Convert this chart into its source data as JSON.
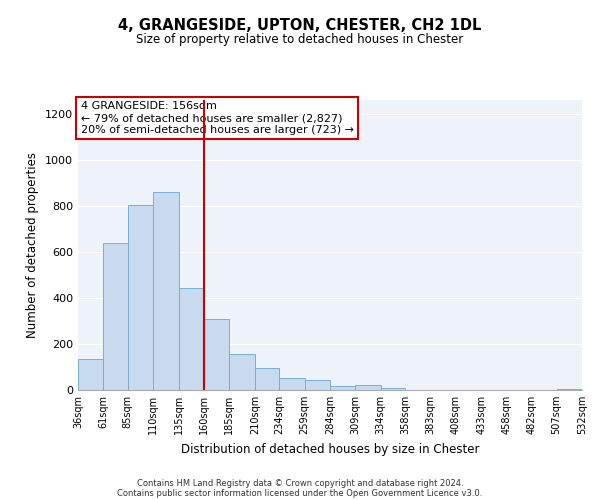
{
  "title": "4, GRANGESIDE, UPTON, CHESTER, CH2 1DL",
  "subtitle": "Size of property relative to detached houses in Chester",
  "xlabel": "Distribution of detached houses by size in Chester",
  "ylabel": "Number of detached properties",
  "bar_color": "#c8daee",
  "bar_edge_color": "#7aaed4",
  "background_color": "#ffffff",
  "plot_bg_color": "#eef3f9",
  "grid_color": "#ffffff",
  "vline_x": 160,
  "vline_color": "#cc0000",
  "annotation_title": "4 GRANGESIDE: 156sqm",
  "annotation_line1": "← 79% of detached houses are smaller (2,827)",
  "annotation_line2": "20% of semi-detached houses are larger (723) →",
  "annotation_box_color": "#ffffff",
  "annotation_box_edge": "#cc0000",
  "bins": [
    36,
    61,
    85,
    110,
    135,
    160,
    185,
    210,
    234,
    259,
    284,
    309,
    334,
    358,
    383,
    408,
    433,
    458,
    482,
    507,
    532
  ],
  "values": [
    135,
    640,
    805,
    860,
    445,
    310,
    158,
    95,
    52,
    42,
    18,
    20,
    8,
    2,
    0,
    0,
    0,
    0,
    0,
    3
  ],
  "ylim": [
    0,
    1260
  ],
  "yticks": [
    0,
    200,
    400,
    600,
    800,
    1000,
    1200
  ],
  "footer_line1": "Contains HM Land Registry data © Crown copyright and database right 2024.",
  "footer_line2": "Contains public sector information licensed under the Open Government Licence v3.0."
}
